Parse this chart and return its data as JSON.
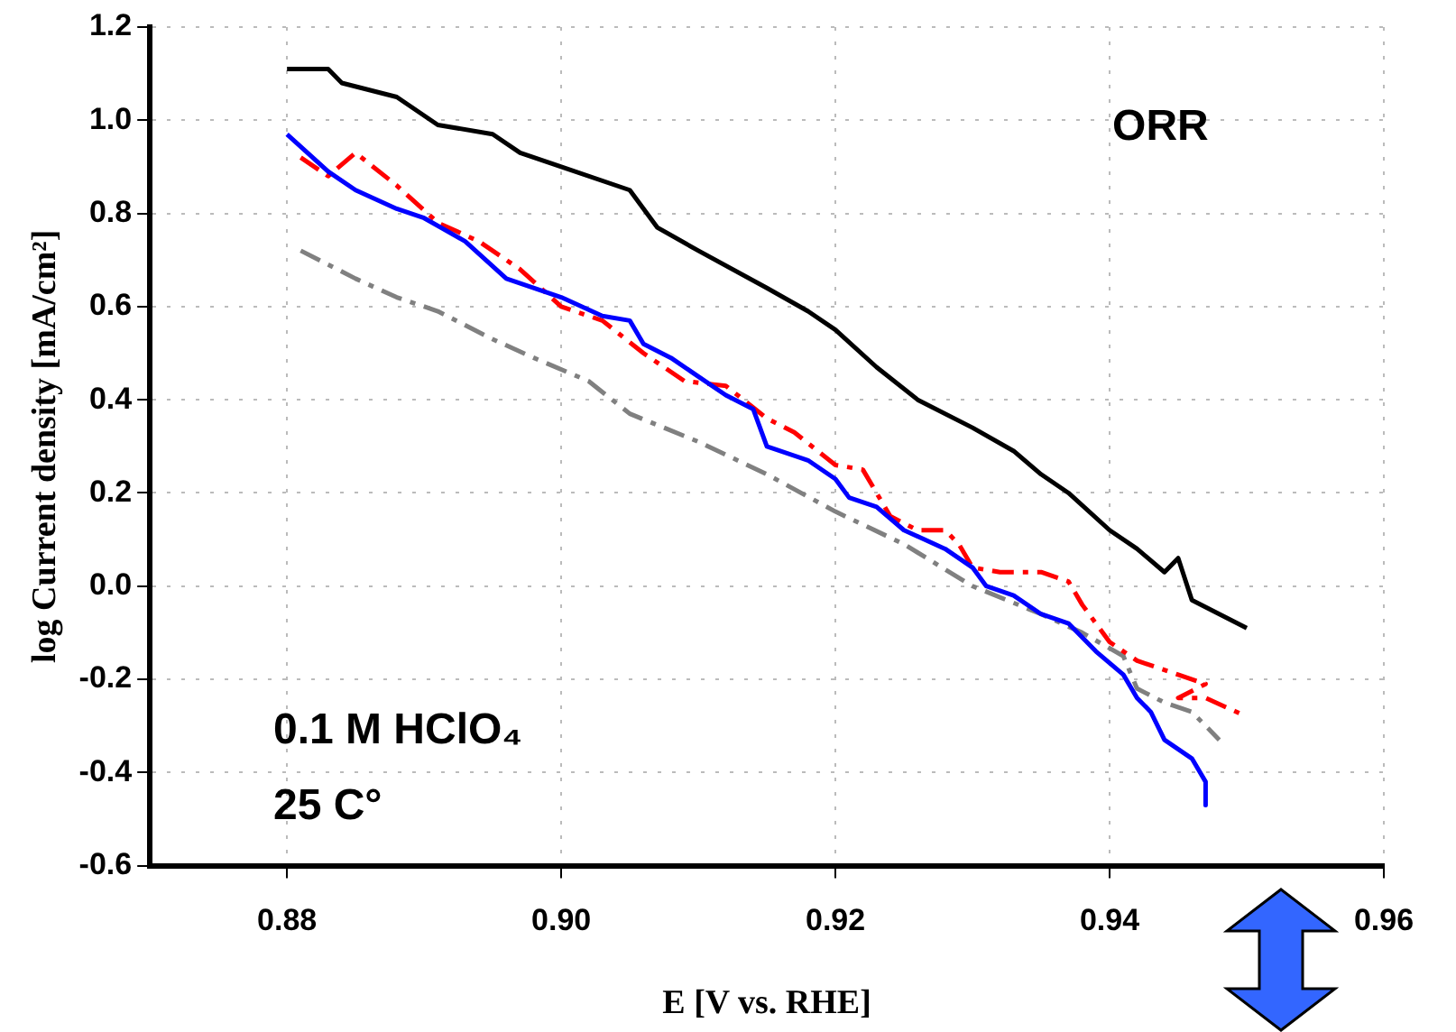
{
  "chart_data": {
    "type": "line",
    "xlabel": "E [V vs. RHE]",
    "ylabel": "log Current density [mA/cm²]",
    "annotations": [
      "ORR",
      "0.1 M HClO₄",
      "25 C°"
    ],
    "xlim": [
      0.87,
      0.96
    ],
    "xticks": [
      0.88,
      {
        "value": 0.9,
        "label": "0.90"
      },
      0.92,
      0.94,
      0.96
    ],
    "ylim": [
      -0.6,
      1.2
    ],
    "yticks": [
      -0.6,
      -0.4,
      -0.2,
      {
        "value": 0,
        "label": "0.0"
      },
      0.2,
      0.4,
      0.6,
      0.8,
      {
        "value": 1,
        "label": "1.0"
      },
      1.2
    ],
    "grid": true,
    "legend": false,
    "marker": "none",
    "series": [
      {
        "color": "#000000",
        "line_style": "solid",
        "x": [
          0.88,
          0.883,
          0.884,
          0.888,
          0.891,
          0.895,
          0.897,
          0.9,
          0.905,
          0.907,
          0.91,
          0.915,
          0.918,
          0.92,
          0.923,
          0.926,
          0.93,
          0.933,
          0.935,
          0.937,
          0.94,
          0.942,
          0.944,
          0.945,
          0.946,
          0.948,
          0.95
        ],
        "values": [
          1.11,
          1.11,
          1.08,
          1.05,
          0.99,
          0.97,
          0.93,
          0.9,
          0.85,
          0.77,
          0.72,
          0.64,
          0.59,
          0.55,
          0.47,
          0.4,
          0.34,
          0.29,
          0.24,
          0.2,
          0.12,
          0.08,
          0.03,
          0.06,
          -0.03,
          -0.06,
          -0.09
        ]
      },
      {
        "color": "#0000ff",
        "line_style": "solid",
        "x": [
          0.88,
          0.883,
          0.885,
          0.888,
          0.89,
          0.893,
          0.896,
          0.9,
          0.903,
          0.905,
          0.906,
          0.908,
          0.91,
          0.912,
          0.914,
          0.915,
          0.918,
          0.92,
          0.921,
          0.923,
          0.925,
          0.928,
          0.93,
          0.931,
          0.933,
          0.935,
          0.937,
          0.939,
          0.941,
          0.942,
          0.943,
          0.944,
          0.946,
          0.947,
          0.947
        ],
        "values": [
          0.97,
          0.89,
          0.85,
          0.81,
          0.79,
          0.74,
          0.66,
          0.62,
          0.58,
          0.57,
          0.52,
          0.49,
          0.45,
          0.41,
          0.38,
          0.3,
          0.27,
          0.23,
          0.19,
          0.17,
          0.12,
          0.08,
          0.04,
          0.0,
          -0.02,
          -0.06,
          -0.08,
          -0.14,
          -0.19,
          -0.24,
          -0.27,
          -0.33,
          -0.37,
          -0.42,
          -0.47
        ]
      },
      {
        "color": "#ff0000",
        "line_style": "dashed",
        "x": [
          0.881,
          0.883,
          0.885,
          0.888,
          0.891,
          0.894,
          0.897,
          0.9,
          0.903,
          0.906,
          0.909,
          0.912,
          0.915,
          0.917,
          0.92,
          0.922,
          0.924,
          0.926,
          0.928,
          0.929,
          0.93,
          0.932,
          0.935,
          0.937,
          0.938,
          0.94,
          0.942,
          0.945,
          0.947,
          0.945,
          0.947,
          0.95
        ],
        "values": [
          0.92,
          0.88,
          0.93,
          0.86,
          0.78,
          0.74,
          0.68,
          0.6,
          0.57,
          0.5,
          0.44,
          0.43,
          0.36,
          0.33,
          0.26,
          0.25,
          0.15,
          0.12,
          0.12,
          0.09,
          0.04,
          0.03,
          0.03,
          0.01,
          -0.04,
          -0.12,
          -0.16,
          -0.19,
          -0.21,
          -0.24,
          -0.24,
          -0.28
        ]
      },
      {
        "color": "#808080",
        "line_style": "dashed",
        "x": [
          0.881,
          0.885,
          0.888,
          0.891,
          0.895,
          0.898,
          0.902,
          0.905,
          0.91,
          0.915,
          0.92,
          0.925,
          0.93,
          0.935,
          0.938,
          0.941,
          0.942,
          0.944,
          0.946,
          0.948
        ],
        "values": [
          0.72,
          0.66,
          0.62,
          0.59,
          0.53,
          0.49,
          0.44,
          0.37,
          0.31,
          0.24,
          0.16,
          0.09,
          0.0,
          -0.06,
          -0.1,
          -0.15,
          -0.22,
          -0.25,
          -0.27,
          -0.33
        ]
      }
    ]
  }
}
